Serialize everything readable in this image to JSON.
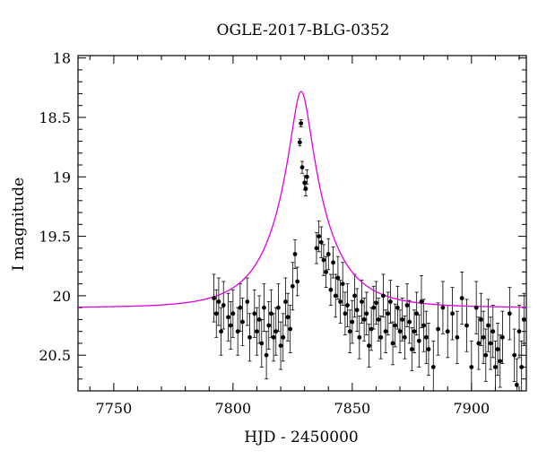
{
  "chart_data": {
    "type": "scatter",
    "title": "OGLE-2017-BLG-0352",
    "xlabel": "HJD - 2450000",
    "ylabel": "I magnitude",
    "xlim": [
      7735,
      7923
    ],
    "ylim": [
      20.8,
      17.98
    ],
    "y_inverted": true,
    "grid": false,
    "x_ticks": [
      7750,
      7800,
      7850,
      7900
    ],
    "y_ticks": [
      18,
      18.5,
      19,
      19.5,
      20,
      20.5
    ],
    "x_tick_labels": [
      "7750",
      "7800",
      "7850",
      "7900"
    ],
    "y_tick_labels": [
      "18",
      "18.5",
      "19",
      "19.5",
      "20",
      "20.5"
    ],
    "model_color": "#e000e0",
    "point_color": "#000000",
    "model": {
      "t0": 828.6,
      "u0": 0.19,
      "tE": 21.0,
      "base_mag": 20.1
    },
    "series": [
      {
        "x": [
          7792,
          7793,
          7794,
          7795,
          7796,
          7798,
          7799,
          7800,
          7802,
          7803,
          7804,
          7806,
          7807,
          7809,
          7810,
          7811,
          7812,
          7813,
          7814,
          7815,
          7816,
          7817,
          7818,
          7819,
          7820,
          7821,
          7822,
          7823,
          7824,
          7825,
          7826,
          7827,
          7828,
          7828.5,
          7829,
          7830,
          7830.5,
          7831,
          7835,
          7836,
          7837,
          7838,
          7839,
          7840,
          7841,
          7842,
          7843,
          7844,
          7845,
          7846,
          7847,
          7848,
          7849,
          7850,
          7851,
          7852,
          7853,
          7854,
          7855,
          7856,
          7857,
          7858,
          7859,
          7860,
          7861,
          7862,
          7863,
          7864,
          7865,
          7866,
          7867,
          7868,
          7869,
          7870,
          7871,
          7872,
          7873,
          7874,
          7875,
          7876,
          7877,
          7878,
          7879,
          7880,
          7881,
          7882,
          7884,
          7886,
          7888,
          7890,
          7892,
          7894,
          7896,
          7898,
          7900,
          7902,
          7903,
          7904,
          7905,
          7906,
          7907,
          7908,
          7909,
          7910,
          7911,
          7912,
          7913,
          7916,
          7918,
          7919,
          7920,
          7921,
          7922
        ],
        "y": [
          20.02,
          20.15,
          20.05,
          20.3,
          20.08,
          20.18,
          20.25,
          20.15,
          20.3,
          20.1,
          20.22,
          20.05,
          20.35,
          20.15,
          20.3,
          20.2,
          20.4,
          20.1,
          20.5,
          20.25,
          20.15,
          20.35,
          20.3,
          20.1,
          20.42,
          20.35,
          20.05,
          20.18,
          20.28,
          19.92,
          19.65,
          19.88,
          18.71,
          18.55,
          18.92,
          19.05,
          19.1,
          19.0,
          19.6,
          19.5,
          19.55,
          19.7,
          19.8,
          19.65,
          19.95,
          19.72,
          20.0,
          19.85,
          20.05,
          19.9,
          20.15,
          20.08,
          20.3,
          20.22,
          20.0,
          20.12,
          20.35,
          20.05,
          20.2,
          20.15,
          20.42,
          20.28,
          20.1,
          20.06,
          20.2,
          20.35,
          20.0,
          20.3,
          20.15,
          20.05,
          20.4,
          20.25,
          20.1,
          20.3,
          20.2,
          20.35,
          20.08,
          20.22,
          20.45,
          20.3,
          20.15,
          20.38,
          20.05,
          20.25,
          20.35,
          20.45,
          20.6,
          20.28,
          20.1,
          20.3,
          20.15,
          20.35,
          20.02,
          20.25,
          20.6,
          20.1,
          20.4,
          20.2,
          20.35,
          20.5,
          20.25,
          20.4,
          20.3,
          20.6,
          20.45,
          20.55,
          20.35,
          20.15,
          20.5,
          20.75,
          20.3,
          20.6,
          20.2
        ],
        "yerr": [
          0.2,
          0.2,
          0.2,
          0.2,
          0.2,
          0.2,
          0.2,
          0.2,
          0.2,
          0.2,
          0.2,
          0.2,
          0.2,
          0.2,
          0.2,
          0.2,
          0.2,
          0.2,
          0.2,
          0.2,
          0.2,
          0.2,
          0.2,
          0.2,
          0.2,
          0.2,
          0.2,
          0.2,
          0.2,
          0.2,
          0.12,
          0.12,
          0.03,
          0.03,
          0.05,
          0.06,
          0.06,
          0.06,
          0.13,
          0.13,
          0.13,
          0.13,
          0.13,
          0.13,
          0.13,
          0.13,
          0.18,
          0.18,
          0.18,
          0.18,
          0.18,
          0.18,
          0.18,
          0.18,
          0.18,
          0.18,
          0.18,
          0.18,
          0.18,
          0.18,
          0.18,
          0.18,
          0.18,
          0.18,
          0.18,
          0.18,
          0.18,
          0.18,
          0.18,
          0.18,
          0.18,
          0.18,
          0.18,
          0.18,
          0.18,
          0.18,
          0.18,
          0.18,
          0.18,
          0.18,
          0.18,
          0.22,
          0.22,
          0.22,
          0.22,
          0.22,
          0.22,
          0.22,
          0.22,
          0.22,
          0.22,
          0.22,
          0.22,
          0.22,
          0.22,
          0.22,
          0.22,
          0.22,
          0.22,
          0.22,
          0.22,
          0.22,
          0.22,
          0.22,
          0.22,
          0.22,
          0.22,
          0.22,
          0.22,
          0.22,
          0.22,
          0.22,
          0.22
        ]
      }
    ]
  }
}
